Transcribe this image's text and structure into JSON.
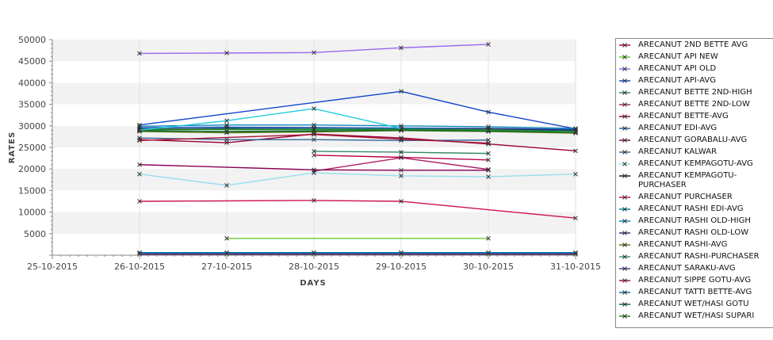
{
  "chart_data": {
    "type": "line",
    "title": "",
    "xlabel": "DAYS",
    "ylabel": "RATES",
    "x_ticks": [
      "25-10-2015",
      "26-10-2015",
      "27-10-2015",
      "28-10-2015",
      "29-10-2015",
      "30-10-2015",
      "31-10-2015"
    ],
    "y_ticks": [
      "5000",
      "10000",
      "15000",
      "20000",
      "25000",
      "30000",
      "35000",
      "40000",
      "45000",
      "50000"
    ],
    "ylim": [
      0,
      50000
    ],
    "grid": "horizontal bands and vertical lines",
    "legend_position": "right",
    "series": [
      {
        "name": "ARECANUT 2ND BETTE AVG",
        "color": "#b8004a",
        "x": [
          "28-10-2015",
          "29-10-2015",
          "30-10-2015"
        ],
        "values": [
          23200,
          22700,
          22100
        ]
      },
      {
        "name": "ARECANUT API NEW",
        "color": "#66cc33",
        "x": [
          "27-10-2015",
          "30-10-2015"
        ],
        "values": [
          3900,
          3900
        ]
      },
      {
        "name": "ARECANUT API OLD",
        "color": "#9966ee",
        "x": [
          "26-10-2015",
          "27-10-2015",
          "28-10-2015",
          "29-10-2015",
          "30-10-2015"
        ],
        "values": [
          46800,
          46900,
          47000,
          48100,
          48900
        ]
      },
      {
        "name": "ARECANUT API-AVG",
        "color": "#1144cc",
        "x": [
          "26-10-2015",
          "29-10-2015",
          "30-10-2015",
          "31-10-2015"
        ],
        "values": [
          30200,
          38000,
          33200,
          29300
        ]
      },
      {
        "name": "ARECANUT BETTE 2ND-HIGH",
        "color": "#338866",
        "x": [
          "28-10-2015",
          "29-10-2015",
          "30-10-2015"
        ],
        "values": [
          24100,
          23900,
          23600
        ]
      },
      {
        "name": "ARECANUT BETTE 2ND-LOW",
        "color": "#aa2266",
        "x": [
          "28-10-2015",
          "29-10-2015",
          "30-10-2015"
        ],
        "values": [
          19500,
          22600,
          19900
        ]
      },
      {
        "name": "ARECANUT BETTE-AVG",
        "color": "#990033",
        "x": [
          "26-10-2015",
          "27-10-2015",
          "28-10-2015",
          "29-10-2015",
          "30-10-2015",
          "31-10-2015"
        ],
        "values": [
          26800,
          26100,
          28100,
          27200,
          25800,
          24200
        ]
      },
      {
        "name": "ARECANUT EDI-AVG",
        "color": "#2255bb",
        "x": [
          "26-10-2015",
          "27-10-2015",
          "28-10-2015",
          "29-10-2015",
          "30-10-2015",
          "31-10-2015"
        ],
        "values": [
          29600,
          29700,
          29600,
          29500,
          29400,
          29200
        ]
      },
      {
        "name": "ARECANUT GORABALU-AVG",
        "color": "#880055",
        "x": [
          "26-10-2015",
          "28-10-2015",
          "29-10-2015",
          "30-10-2015"
        ],
        "values": [
          21000,
          19800,
          19700,
          19700
        ]
      },
      {
        "name": "ARECANUT KALWAR",
        "color": "#336699",
        "x": [
          "26-10-2015",
          "27-10-2015",
          "28-10-2015",
          "29-10-2015",
          "30-10-2015"
        ],
        "values": [
          27200,
          26800,
          26800,
          26600,
          26700
        ]
      },
      {
        "name": "ARECANUT KEMPAGOTU-AVG",
        "color": "#99ddee",
        "x": [
          "26-10-2015",
          "27-10-2015",
          "28-10-2015",
          "29-10-2015",
          "30-10-2015",
          "31-10-2015"
        ],
        "values": [
          18800,
          16200,
          19100,
          18400,
          18200,
          18800
        ]
      },
      {
        "name": "ARECANUT KEMPAGOTU-PURCHASER",
        "color": "#330044",
        "x": [
          "26-10-2015",
          "27-10-2015",
          "28-10-2015",
          "29-10-2015",
          "30-10-2015",
          "31-10-2015"
        ],
        "values": [
          200,
          200,
          200,
          200,
          200,
          200
        ]
      },
      {
        "name": "ARECANUT PURCHASER",
        "color": "#cc1155",
        "x": [
          "26-10-2015",
          "28-10-2015",
          "29-10-2015",
          "31-10-2015"
        ],
        "values": [
          12500,
          12700,
          12500,
          8600
        ]
      },
      {
        "name": "ARECANUT RASHI EDI-AVG",
        "color": "#008888",
        "x": [
          "26-10-2015",
          "27-10-2015",
          "28-10-2015",
          "29-10-2015",
          "30-10-2015",
          "31-10-2015"
        ],
        "values": [
          29000,
          29500,
          29200,
          29300,
          29100,
          28900
        ]
      },
      {
        "name": "ARECANUT RASHI OLD-HIGH",
        "color": "#1188bb",
        "x": [
          "26-10-2015",
          "27-10-2015",
          "28-10-2015",
          "29-10-2015",
          "30-10-2015",
          "31-10-2015"
        ],
        "values": [
          29900,
          30200,
          30200,
          30000,
          29800,
          29400
        ]
      },
      {
        "name": "ARECANUT RASHI OLD-LOW",
        "color": "#223366",
        "x": [
          "26-10-2015",
          "28-10-2015",
          "29-10-2015",
          "30-10-2015",
          "31-10-2015"
        ],
        "values": [
          29300,
          29400,
          29200,
          29300,
          29000
        ]
      },
      {
        "name": "ARECANUT RASHI-AVG",
        "color": "#557711",
        "x": [
          "26-10-2015",
          "27-10-2015",
          "28-10-2015",
          "29-10-2015",
          "30-10-2015",
          "31-10-2015"
        ],
        "values": [
          28700,
          28400,
          28600,
          28900,
          28700,
          28300
        ]
      },
      {
        "name": "ARECANUT RASHI-PURCHASER",
        "color": "#339988",
        "x": [
          "26-10-2015",
          "27-10-2015",
          "28-10-2015",
          "29-10-2015",
          "30-10-2015",
          "31-10-2015"
        ],
        "values": [
          29100,
          29200,
          29300,
          29200,
          29100,
          28600
        ]
      },
      {
        "name": "ARECANUT SARAKU-AVG",
        "color": "#3344aa",
        "x": [
          "26-10-2015",
          "27-10-2015",
          "28-10-2015",
          "29-10-2015",
          "30-10-2015",
          "31-10-2015"
        ],
        "values": [
          500,
          500,
          500,
          500,
          500,
          500
        ]
      },
      {
        "name": "ARECANUT SIPPE GOTU-AVG",
        "color": "#aa1133",
        "x": [
          "26-10-2015",
          "28-10-2015",
          "29-10-2015",
          "30-10-2015"
        ],
        "values": [
          26600,
          28000,
          26900,
          26000
        ]
      },
      {
        "name": "ARECANUT TATTI BETTE-AVG",
        "color": "#0077aa",
        "x": [
          "26-10-2015",
          "27-10-2015",
          "28-10-2015",
          "29-10-2015",
          "30-10-2015",
          "31-10-2015"
        ],
        "values": [
          600,
          600,
          600,
          600,
          600,
          600
        ]
      },
      {
        "name": "ARECANUT WET/HASI GOTU",
        "color": "#116633",
        "x": [
          "26-10-2015",
          "27-10-2015",
          "28-10-2015",
          "29-10-2015",
          "30-10-2015",
          "31-10-2015"
        ],
        "values": [
          28900,
          28700,
          28800,
          29000,
          28800,
          28500
        ]
      },
      {
        "name": "ARECANUT WET/HASI SUPARI",
        "color": "#228822",
        "x": [
          "26-10-2015",
          "28-10-2015",
          "29-10-2015",
          "30-10-2015",
          "31-10-2015"
        ],
        "values": [
          29200,
          29100,
          29200,
          29000,
          28600
        ]
      },
      {
        "name": "",
        "color": "#22ccdd",
        "x": [
          "26-10-2015",
          "27-10-2015",
          "28-10-2015",
          "29-10-2015"
        ],
        "values": [
          29000,
          31200,
          34000,
          29400
        ]
      }
    ]
  }
}
